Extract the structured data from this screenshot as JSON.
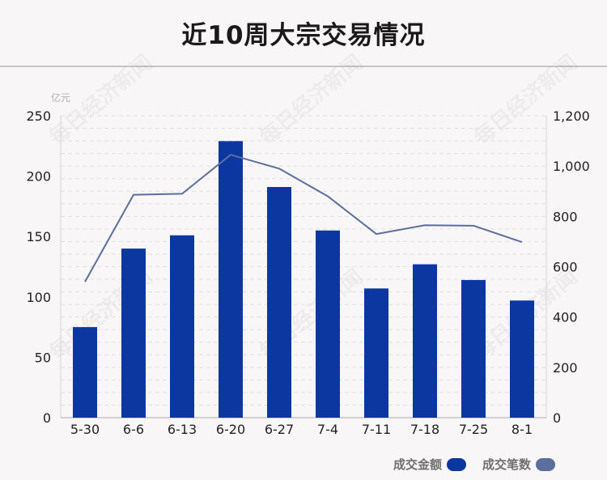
{
  "chart_data": {
    "type": "bar",
    "title": "近10周大宗交易情况",
    "categories": [
      "5-30",
      "6-6",
      "6-13",
      "6-20",
      "6-27",
      "7-4",
      "7-11",
      "7-18",
      "7-25",
      "8-1"
    ],
    "series": [
      {
        "name": "成交金额",
        "type": "bar",
        "axis": "left",
        "color": "#0d37a0",
        "values": [
          75,
          140,
          151,
          229,
          191,
          155,
          107,
          127,
          114,
          97
        ]
      },
      {
        "name": "成交笔数",
        "type": "line",
        "axis": "right",
        "color": "#5b6e9c",
        "values": [
          540,
          886,
          890,
          1045,
          990,
          880,
          730,
          765,
          763,
          698
        ]
      }
    ],
    "left_axis": {
      "unit": "亿元",
      "ylim": [
        0,
        250
      ],
      "ticks": [
        "0",
        "50",
        "100",
        "150",
        "200",
        "250"
      ]
    },
    "right_axis": {
      "ylim": [
        0,
        1200
      ],
      "ticks": [
        "0",
        "200",
        "400",
        "600",
        "800",
        "1,000",
        "1,200"
      ]
    },
    "grid": true,
    "legend_position": "bottom-right",
    "watermark": "每日经济新闻"
  }
}
